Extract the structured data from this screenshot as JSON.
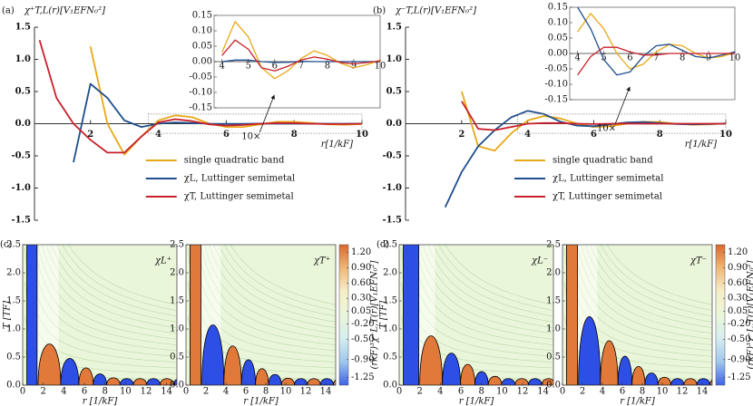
{
  "chart_data": [
    {
      "type": "line",
      "panel": "(a)",
      "ylabel": "χ⁺T,L(r)[V₁EFN₀²]",
      "xlabel": "r[1/kF]",
      "x": [
        0.5,
        1,
        1.5,
        2,
        2.5,
        3,
        3.5,
        4,
        4.5,
        5,
        5.5,
        6,
        6.5,
        7,
        7.5,
        8,
        8.5,
        9,
        9.5,
        10
      ],
      "xlim": [
        0.35,
        10
      ],
      "ylim": [
        -1.5,
        1.5
      ],
      "xticks": [
        2,
        4,
        6,
        8,
        10
      ],
      "yticks": [
        1.5,
        {
          "value": 1,
          "label": "1.0"
        },
        0.5,
        {
          "value": 0,
          "label": "0.0"
        },
        -0.5,
        {
          "value": -1,
          "label": "-1.0"
        },
        -1.5
      ],
      "series": [
        {
          "name": "single quadratic band",
          "color": "#e8a817",
          "values": [
            null,
            null,
            null,
            1.2,
            0.0,
            -0.48,
            -0.2,
            0.05,
            0.13,
            0.1,
            0.0,
            -0.05,
            -0.05,
            -0.01,
            0.03,
            0.03,
            0.01,
            -0.01,
            -0.015,
            -0.005
          ]
        },
        {
          "name": "χL, Luttinger semimetal",
          "color": "#1f4e8c",
          "values": [
            null,
            null,
            -0.6,
            0.62,
            0.4,
            0.05,
            -0.05,
            0.0,
            0.02,
            0.01,
            0.0,
            -0.003,
            -0.002,
            0.001,
            0.0,
            0.0,
            0.0,
            0.0,
            0.0,
            0.0
          ]
        },
        {
          "name": "χT, Luttinger semimetal",
          "color": "#c8202a",
          "values": [
            1.3,
            0.4,
            0.0,
            -0.25,
            -0.45,
            -0.45,
            -0.2,
            0.02,
            0.07,
            0.04,
            -0.01,
            -0.03,
            -0.02,
            0.0,
            0.01,
            0.01,
            0.0,
            -0.005,
            -0.005,
            0.0
          ]
        }
      ]
    },
    {
      "type": "inset",
      "frame": true,
      "annotation": "10×",
      "x": [
        4,
        4.5,
        5,
        5.5,
        6,
        6.5,
        7,
        7.5,
        8,
        8.5,
        9,
        9.5,
        10
      ],
      "xlim": [
        3.7,
        10
      ],
      "ylim": [
        -0.15,
        0.15
      ],
      "xticks": [
        4,
        5,
        6,
        7,
        8,
        9,
        10
      ],
      "yticks": [
        {
          "value": 0.15,
          "label": "0.15"
        },
        {
          "value": 0.1,
          "label": "0.10"
        },
        {
          "value": 0.05,
          "label": "0.05"
        },
        {
          "value": 0,
          "label": "0.00"
        },
        {
          "value": -0.05,
          "label": "-0.05"
        },
        {
          "value": -0.1,
          "label": "-0.10"
        },
        {
          "value": -0.15,
          "label": "-0.15"
        }
      ],
      "series": [
        {
          "color": "#e8a817",
          "values": [
            0.03,
            0.13,
            0.08,
            -0.02,
            -0.055,
            -0.03,
            0.01,
            0.035,
            0.02,
            -0.005,
            -0.02,
            -0.01,
            0.005
          ]
        },
        {
          "color": "#1f4e8c",
          "values": [
            0.0,
            0.005,
            0.005,
            0.0,
            -0.003,
            -0.002,
            0.001,
            0.0,
            0.0,
            0.0,
            0.0,
            0.0,
            0.0
          ]
        },
        {
          "color": "#c8202a",
          "values": [
            0.02,
            0.07,
            0.04,
            -0.02,
            -0.03,
            -0.015,
            0.005,
            0.015,
            0.008,
            -0.003,
            -0.007,
            -0.003,
            0.002
          ]
        }
      ]
    },
    {
      "type": "line",
      "panel": "(b)",
      "ylabel": "χ⁻T,L(r)[V₁EFN₀²]",
      "xlabel": "r[1/kF]",
      "x": [
        0.5,
        1,
        1.5,
        2,
        2.5,
        3,
        3.5,
        4,
        4.5,
        5,
        5.5,
        6,
        6.5,
        7,
        7.5,
        8,
        8.5,
        9,
        9.5,
        10
      ],
      "xlim": [
        0.3,
        10
      ],
      "ylim": [
        -1.5,
        1.5
      ],
      "xticks": [
        2,
        4,
        6,
        8,
        10
      ],
      "yticks": [
        1.5,
        {
          "value": 1,
          "label": "1.0"
        },
        0.5,
        {
          "value": 0,
          "label": "0.0"
        },
        -0.5,
        {
          "value": -1,
          "label": "-1.0"
        },
        -1.5
      ],
      "series": [
        {
          "name": "single quadratic band",
          "color": "#e8a817",
          "values": [
            null,
            null,
            null,
            0.5,
            -0.35,
            -0.42,
            -0.15,
            0.05,
            0.12,
            0.08,
            0.0,
            -0.05,
            -0.04,
            0.0,
            0.03,
            0.025,
            0.0,
            -0.015,
            -0.01,
            0.005
          ]
        },
        {
          "name": "χL, Luttinger semimetal",
          "color": "#1f4e8c",
          "values": [
            null,
            null,
            -1.3,
            -0.75,
            -0.35,
            -0.1,
            0.1,
            0.2,
            0.15,
            0.03,
            -0.03,
            -0.04,
            -0.01,
            0.02,
            0.025,
            0.01,
            -0.005,
            -0.01,
            -0.005,
            0.003
          ]
        },
        {
          "name": "χT, Luttinger semimetal",
          "color": "#c8202a",
          "values": [
            null,
            null,
            null,
            0.35,
            -0.08,
            -0.1,
            -0.05,
            0.0,
            0.01,
            0.01,
            0.0,
            -0.005,
            0.0,
            0.003,
            0.0,
            0.0,
            0.0,
            0.0,
            0.0,
            0.0
          ]
        }
      ]
    },
    {
      "type": "inset",
      "frame": true,
      "annotation": "10×",
      "x": [
        4,
        4.5,
        5,
        5.5,
        6,
        6.5,
        7,
        7.5,
        8,
        8.5,
        9,
        9.5,
        10
      ],
      "xlim": [
        3.7,
        10
      ],
      "ylim": [
        -0.15,
        0.15
      ],
      "xticks": [
        4,
        5,
        6,
        7,
        8,
        9,
        10
      ],
      "yticks": [
        {
          "value": 0.15,
          "label": "0.15"
        },
        {
          "value": 0.1,
          "label": "0.10"
        },
        {
          "value": 0.05,
          "label": "0.05"
        },
        {
          "value": 0,
          "label": "0.00"
        },
        {
          "value": -0.05,
          "label": "-0.05"
        },
        {
          "value": -0.1,
          "label": "-0.10"
        },
        {
          "value": -0.15,
          "label": "-0.15"
        }
      ],
      "series": [
        {
          "color": "#e8a817",
          "values": [
            0.07,
            0.13,
            0.08,
            0.0,
            -0.05,
            -0.035,
            0.005,
            0.03,
            0.025,
            0.0,
            -0.015,
            -0.01,
            0.003
          ]
        },
        {
          "color": "#1f4e8c",
          "values": [
            0.15,
            0.08,
            -0.02,
            -0.07,
            -0.06,
            -0.01,
            0.025,
            0.03,
            0.01,
            -0.01,
            -0.015,
            -0.005,
            0.005
          ]
        },
        {
          "color": "#c8202a",
          "values": [
            -0.07,
            -0.01,
            0.02,
            0.02,
            0.005,
            -0.005,
            -0.005,
            0.0,
            0.0,
            0.0,
            0.0,
            0.0,
            0.0
          ]
        }
      ]
    },
    {
      "type": "heatmap",
      "panel": "(c)",
      "title": "χL⁺",
      "ylabel": "T [TF]",
      "xlabel": "r [1/kF]",
      "xlim": [
        0,
        15
      ],
      "ylim": [
        0,
        2.5
      ],
      "xticks": [
        0,
        2,
        4,
        6,
        8,
        10,
        12,
        14
      ],
      "yticks": [
        {
          "value": 0,
          "label": "0.0"
        },
        0.5,
        {
          "value": 1,
          "label": "1.0"
        },
        1.5,
        {
          "value": 2,
          "label": "2.0"
        },
        2.5
      ]
    },
    {
      "type": "heatmap",
      "title": "χT⁺",
      "xlabel": "r [1/kF]",
      "xlim": [
        0,
        15
      ],
      "ylim": [
        0,
        2.5
      ],
      "xticks": [
        0,
        2,
        4,
        6,
        8,
        10,
        12,
        14
      ],
      "yticks": [
        {
          "value": 0,
          "label": "0.0"
        },
        0.5,
        {
          "value": 1,
          "label": "1.0"
        },
        1.5,
        {
          "value": 2,
          "label": "2.0"
        },
        2.5
      ]
    },
    {
      "type": "colorbar",
      "label": "(rkF)³χ⁺L,T(r)[V₁EFN₀²]",
      "lim": [
        -1.4,
        1.35
      ],
      "colors": [
        "#d9692c",
        "#f0b878",
        "#f6eec8",
        "#eaf6da",
        "#d6eef0",
        "#9fc8ec",
        "#3f62e8"
      ],
      "ticks": [
        {
          "value": 1.2,
          "label": "1.20"
        },
        {
          "value": 0.9,
          "label": "0.90"
        },
        {
          "value": 0.6,
          "label": "0.60"
        },
        {
          "value": 0.3,
          "label": "0.30"
        },
        {
          "value": 0.05,
          "label": "0.05"
        },
        {
          "value": -0.2,
          "label": "-0.20"
        },
        {
          "value": -0.5,
          "label": "-0.50"
        },
        {
          "value": -0.9,
          "label": "-0.90"
        },
        {
          "value": -1.25,
          "label": "-1.25"
        }
      ]
    },
    {
      "type": "heatmap",
      "panel": "(d)",
      "title": "χL⁻",
      "ylabel": "T [TF]",
      "xlabel": "r [1/kF]",
      "xlim": [
        0,
        15
      ],
      "ylim": [
        0,
        2.5
      ],
      "xticks": [
        0,
        2,
        4,
        6,
        8,
        10,
        12,
        14
      ],
      "yticks": [
        {
          "value": 0,
          "label": "0.0"
        },
        0.5,
        {
          "value": 1,
          "label": "1.0"
        },
        1.5,
        {
          "value": 2,
          "label": "2.0"
        },
        2.5
      ]
    },
    {
      "type": "heatmap",
      "title": "χT⁻",
      "xlabel": "r [1/kF]",
      "xlim": [
        0,
        15
      ],
      "ylim": [
        0,
        2.5
      ],
      "xticks": [
        0,
        2,
        4,
        6,
        8,
        10,
        12,
        14
      ],
      "yticks": [
        {
          "value": 0,
          "label": "0.0"
        },
        0.5,
        {
          "value": 1,
          "label": "1.0"
        },
        1.5,
        {
          "value": 2,
          "label": "2.0"
        },
        2.5
      ]
    },
    {
      "type": "colorbar",
      "label": "(rkF)³χ⁻L,T(r)[V₁EFN₀²]",
      "lim": [
        -1.4,
        1.35
      ],
      "colors": [
        "#d9692c",
        "#f0b878",
        "#f6eec8",
        "#eaf6da",
        "#d6eef0",
        "#9fc8ec",
        "#3f62e8"
      ],
      "ticks": [
        {
          "value": 1.2,
          "label": "1.20"
        },
        {
          "value": 0.9,
          "label": "0.90"
        },
        {
          "value": 0.6,
          "label": "0.60"
        },
        {
          "value": 0.3,
          "label": "0.30"
        },
        {
          "value": 0.05,
          "label": "0.05"
        },
        {
          "value": -0.2,
          "label": "-0.20"
        },
        {
          "value": -0.5,
          "label": "-0.50"
        },
        {
          "value": -0.9,
          "label": "-0.90"
        },
        {
          "value": -1.25,
          "label": "-1.25"
        }
      ]
    }
  ]
}
